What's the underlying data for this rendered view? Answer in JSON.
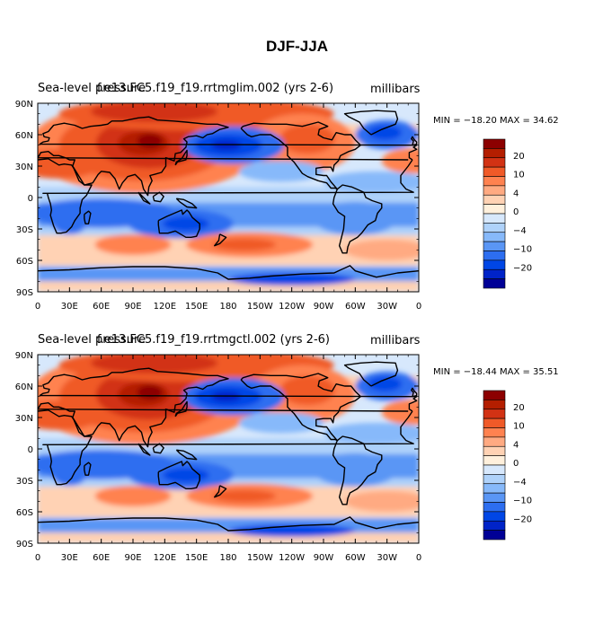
{
  "title": "DJF-JJA",
  "chart_data": [
    {
      "type": "heatmap",
      "left_label": "Sea-level pressure",
      "case_label": "f.e13.FC5.f19_f19.rrtmglim.002 (yrs 2-6)",
      "units": "millibars",
      "min_max_text": "MIN = −18.20  MAX =   34.62",
      "min": -18.2,
      "max": 34.62,
      "x_ticks": [
        "0",
        "30E",
        "60E",
        "90E",
        "120E",
        "150E",
        "180",
        "150W",
        "120W",
        "90W",
        "60W",
        "30W",
        "0"
      ],
      "y_ticks": [
        "90N",
        "60N",
        "30N",
        "0",
        "30S",
        "60S",
        "90S"
      ],
      "colorbar_labels": [
        "20",
        "10",
        "4",
        "0",
        "−4",
        "−10",
        "−20"
      ],
      "xlim": [
        0,
        360
      ],
      "ylim": [
        -90,
        90
      ]
    },
    {
      "type": "heatmap",
      "left_label": "Sea-level pressure",
      "case_label": "f.e13.FC5.f19_f19.rrtmgctl.002 (yrs 2-6)",
      "units": "millibars",
      "min_max_text": "MIN = −18.44  MAX =   35.51",
      "min": -18.44,
      "max": 35.51,
      "x_ticks": [
        "0",
        "30E",
        "60E",
        "90E",
        "120E",
        "150E",
        "180",
        "150W",
        "120W",
        "90W",
        "60W",
        "30W",
        "0"
      ],
      "y_ticks": [
        "90N",
        "60N",
        "30N",
        "0",
        "30S",
        "60S",
        "90S"
      ],
      "colorbar_labels": [
        "20",
        "10",
        "4",
        "0",
        "−4",
        "−10",
        "−20"
      ],
      "xlim": [
        0,
        360
      ],
      "ylim": [
        -90,
        90
      ]
    }
  ],
  "colors": {
    "scale": [
      "#000096",
      "#0023c8",
      "#0046e6",
      "#2d6ef0",
      "#5a96f5",
      "#87b9fa",
      "#afd2fa",
      "#d7e8fc",
      "#fff0dc",
      "#ffd2b4",
      "#ffaa82",
      "#ff8250",
      "#f05a28",
      "#d23214",
      "#b41e00",
      "#8c0000"
    ]
  }
}
